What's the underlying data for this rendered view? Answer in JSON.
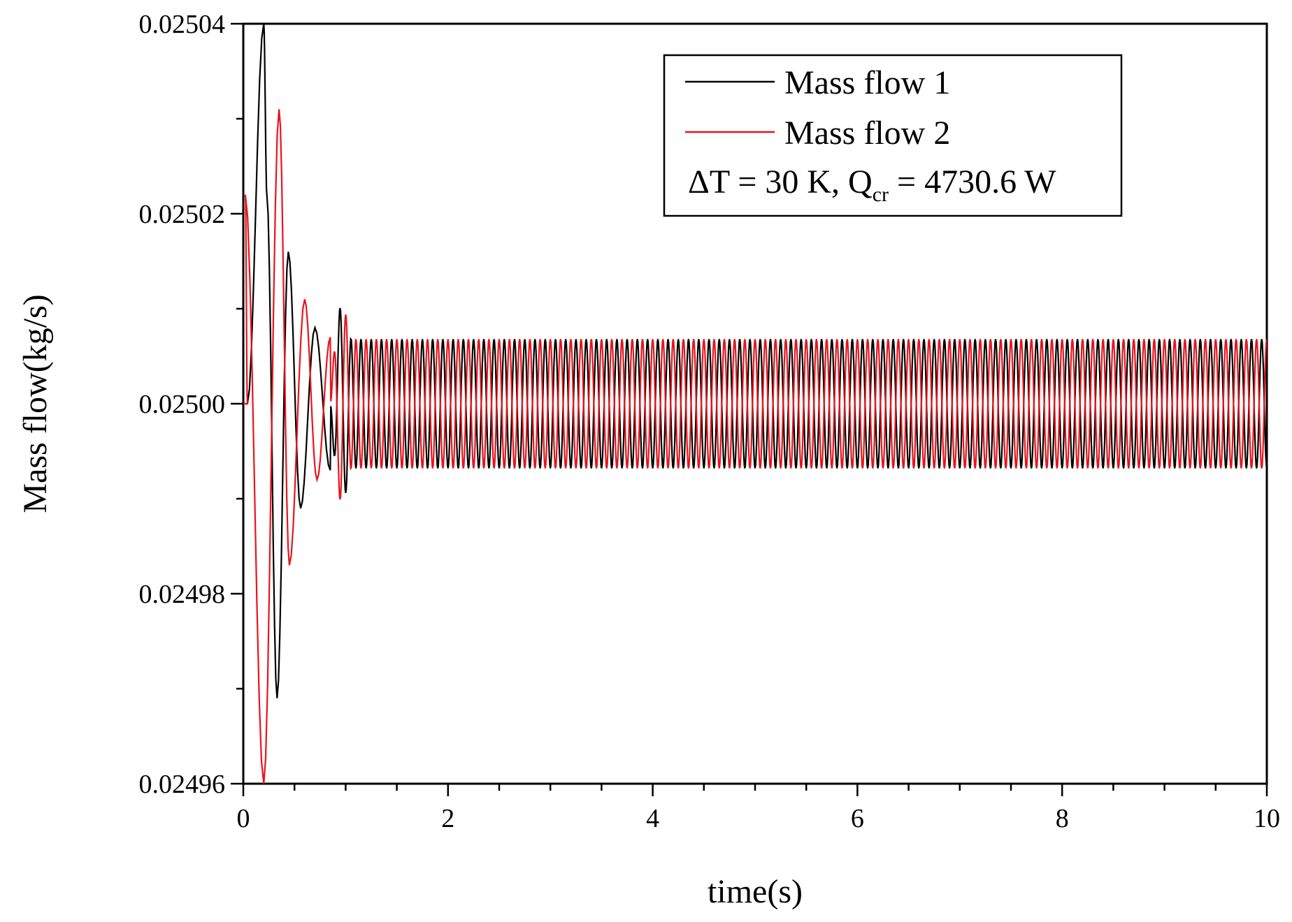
{
  "chart_data": {
    "type": "line",
    "title": "",
    "xlabel": "time(s)",
    "ylabel": "Mass flow(kg/s)",
    "xlim": [
      0,
      10
    ],
    "ylim": [
      0.02496,
      0.02504
    ],
    "x_ticks": [
      0,
      2,
      4,
      6,
      8,
      10
    ],
    "x_tick_labels": [
      "0",
      "2",
      "4",
      "6",
      "8",
      "10"
    ],
    "y_ticks": [
      0.02496,
      0.02498,
      0.025,
      0.02502,
      0.02504
    ],
    "y_tick_labels": [
      "0.02496",
      "0.02498",
      "0.02500",
      "0.02502",
      "0.02504"
    ],
    "grid": false,
    "legend_position": "top-right",
    "annotation": {
      "prefix": "ΔT = 30 K, Q",
      "subscript": "cr",
      "suffix": " = 4730.6 W"
    },
    "series": [
      {
        "name": "Mass flow 1",
        "color": "#000000",
        "initial_value": 0.025,
        "steady_mean": 0.025,
        "steady_amplitude": 6.8e-06,
        "oscillation_period": 0.1,
        "phase_offset": 0.5,
        "transient_peaks": [
          {
            "t": 0.2,
            "value": 0.02504
          },
          {
            "t": 0.23,
            "value": 0.025022
          },
          {
            "t": 0.33,
            "value": 0.024969
          },
          {
            "t": 0.44,
            "value": 0.025016
          },
          {
            "t": 0.56,
            "value": 0.024989
          },
          {
            "t": 0.7,
            "value": 0.025008
          },
          {
            "t": 0.85,
            "value": 0.024993
          }
        ]
      },
      {
        "name": "Mass flow 2",
        "color": "#e8141c",
        "initial_value": 0.025,
        "steady_mean": 0.025,
        "steady_amplitude": 6.8e-06,
        "oscillation_period": 0.1,
        "phase_offset": 0.0,
        "transient_peaks": [
          {
            "t": 0.02,
            "value": 0.025022
          },
          {
            "t": 0.2,
            "value": 0.02496
          },
          {
            "t": 0.35,
            "value": 0.025031
          },
          {
            "t": 0.45,
            "value": 0.024983
          },
          {
            "t": 0.6,
            "value": 0.025011
          },
          {
            "t": 0.72,
            "value": 0.024992
          },
          {
            "t": 0.85,
            "value": 0.025007
          }
        ]
      }
    ]
  }
}
